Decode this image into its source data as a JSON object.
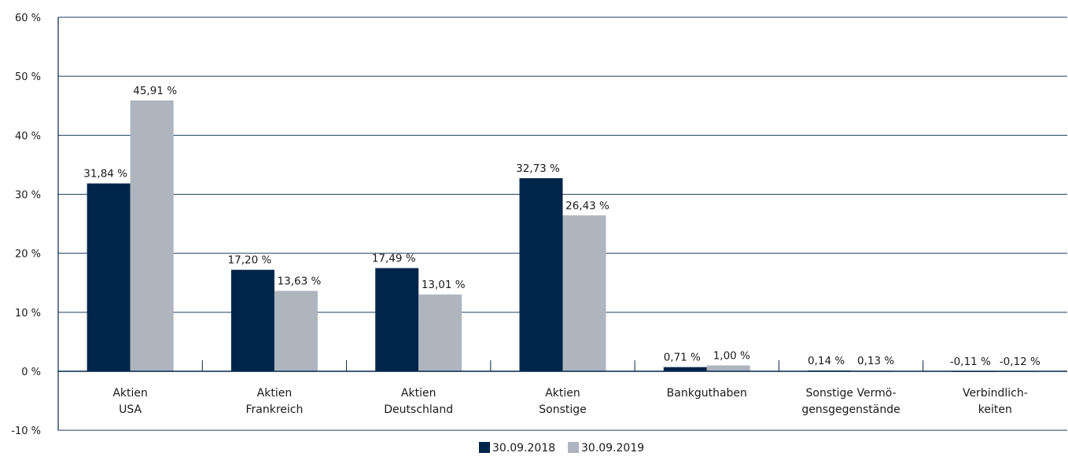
{
  "chart_data": {
    "type": "bar",
    "title": "",
    "xlabel": "",
    "ylabel": "",
    "ylim": [
      -10,
      60
    ],
    "y_ticks": [
      {
        "value": 60,
        "label": "60 %"
      },
      {
        "value": 50,
        "label": "50 %"
      },
      {
        "value": 40,
        "label": "40 %"
      },
      {
        "value": 30,
        "label": "30 %"
      },
      {
        "value": 20,
        "label": "20 %"
      },
      {
        "value": 10,
        "label": "10 %"
      },
      {
        "value": 0,
        "label": "0 %"
      },
      {
        "value": -10,
        "label": "-10 %"
      }
    ],
    "grid": true,
    "legend_position": "bottom-center",
    "categories": [
      [
        "Aktien",
        "USA"
      ],
      [
        "Aktien",
        "Frankreich"
      ],
      [
        "Aktien",
        "Deutschland"
      ],
      [
        "Aktien",
        "Sonstige"
      ],
      [
        "Bankguthaben"
      ],
      [
        "Sonstige Vermö-",
        "gensgegenstände"
      ],
      [
        "Verbindlich-",
        "keiten"
      ]
    ],
    "series": [
      {
        "name": "30.09.2018",
        "color": "#00254a",
        "values": [
          31.84,
          17.2,
          17.49,
          32.73,
          0.71,
          0.14,
          -0.11
        ],
        "labels": [
          "31,84 %",
          "17,20 %",
          "17,49 %",
          "32,73 %",
          "0,71 %",
          "0,14 %",
          "-0,11 %"
        ]
      },
      {
        "name": "30.09.2019",
        "color": "#aeb5be",
        "values": [
          45.91,
          13.63,
          13.01,
          26.43,
          1.0,
          0.13,
          -0.12
        ],
        "labels": [
          "45,91 %",
          "13,63 %",
          "13,01 %",
          "26,43 %",
          "1,00 %",
          "0,13 %",
          "-0,12 %"
        ]
      }
    ],
    "colors": {
      "grid": "#1f3f63",
      "axis": "#00254a",
      "text": "#1a1a1a"
    }
  }
}
